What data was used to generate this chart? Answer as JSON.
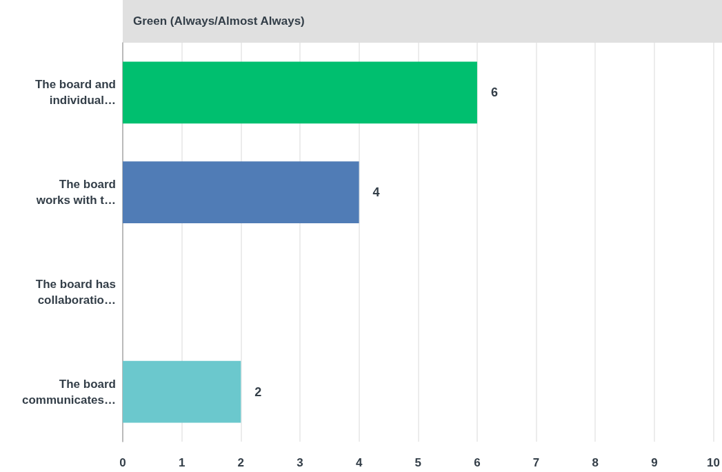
{
  "chart_data": {
    "type": "bar",
    "orientation": "horizontal",
    "title": "Green (Always/Almost Always)",
    "categories": [
      "The board and\nindividual…",
      "The board\nworks with t…",
      "The board has\ncollaboratio…",
      "The board\ncommunicates…"
    ],
    "values": [
      6,
      4,
      0,
      2
    ],
    "colors": [
      "#00bf6f",
      "#507cb6",
      "#6bc8cd",
      "#6bc8cd"
    ],
    "value_labels": [
      "6",
      "4",
      null,
      "2"
    ],
    "xlim": [
      0,
      10
    ],
    "xticks": [
      0,
      1,
      2,
      3,
      4,
      5,
      6,
      7,
      8,
      9,
      10
    ],
    "grid": "x"
  }
}
